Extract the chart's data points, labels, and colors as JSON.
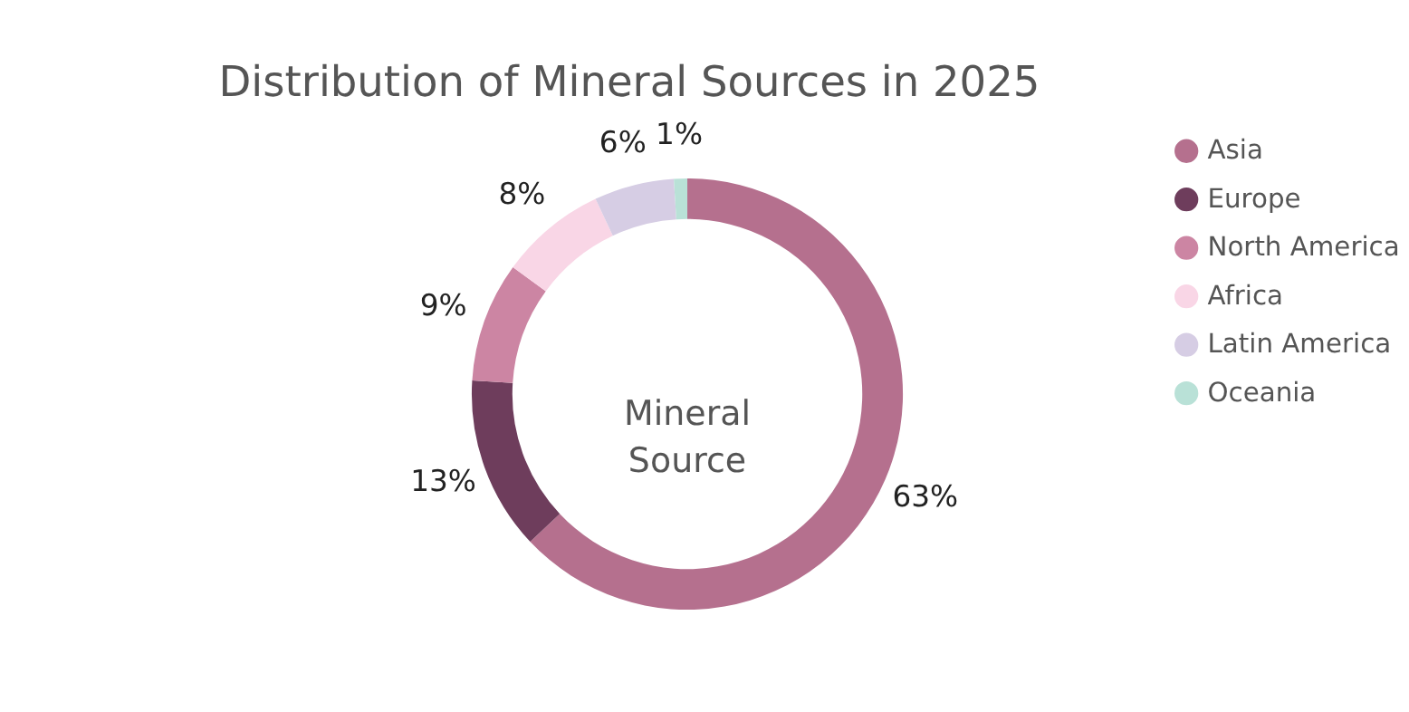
{
  "chart_data": {
    "type": "donut",
    "title": "Distribution of Mineral Sources in 2025",
    "categories": [
      "Asia",
      "Europe",
      "North America",
      "Africa",
      "Latin America",
      "Oceania"
    ],
    "values": [
      63,
      13,
      9,
      8,
      6,
      1
    ],
    "value_labels": [
      "63%",
      "13%",
      "9%",
      "8%",
      "6%",
      "1%"
    ],
    "colors": [
      "#b5708e",
      "#6e3d5c",
      "#cc85a3",
      "#f9d6e6",
      "#d6cde4",
      "#b9e1d7"
    ],
    "annotations": [
      "Mineral Source"
    ],
    "legend": "right"
  }
}
